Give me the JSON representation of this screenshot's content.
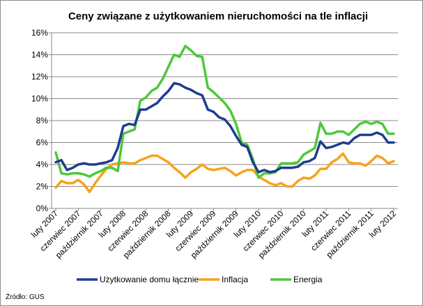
{
  "chart_data": {
    "type": "line",
    "title": "Ceny związane z użytkowaniem nieruchomości na tle inflacji",
    "source_note": "Źródło: GUS",
    "xlabel": "",
    "ylabel": "",
    "ylim": [
      0,
      16
    ],
    "y_ticks": [
      "0%",
      "2%",
      "4%",
      "6%",
      "8%",
      "10%",
      "12%",
      "14%",
      "16%"
    ],
    "x_tick_labels": [
      "luty 2007",
      "czerwiec 2007",
      "październik 2007",
      "luty 2008",
      "czerwiec 2008",
      "październik 2008",
      "luty 2009",
      "czerwiec 2009",
      "październik 2009",
      "luty 2010",
      "czerwiec 2010",
      "październik 2010",
      "luty 2011",
      "czerwiec 2011",
      "październik 2011",
      "luty 2012"
    ],
    "grid": "horizontal",
    "legend_position": "bottom",
    "series": [
      {
        "name": "Użytkowanie domu łącznie",
        "color": "#1f3c8f",
        "values": [
          4.2,
          4.4,
          3.5,
          3.7,
          4.0,
          4.1,
          4.0,
          4.0,
          4.1,
          4.2,
          4.4,
          5.5,
          7.5,
          7.7,
          7.6,
          9.0,
          9.0,
          9.3,
          9.6,
          10.2,
          10.7,
          11.4,
          11.3,
          11.0,
          10.8,
          10.5,
          10.3,
          9.0,
          8.8,
          8.3,
          8.1,
          7.5,
          6.6,
          5.8,
          5.6,
          4.2,
          3.3,
          3.5,
          3.3,
          3.4,
          3.7,
          3.7,
          3.7,
          3.8,
          4.2,
          4.3,
          4.6,
          6.1,
          5.5,
          5.6,
          5.8,
          6.0,
          5.9,
          6.4,
          6.7,
          6.7,
          6.7,
          6.9,
          6.7,
          6.0,
          6.0
        ]
      },
      {
        "name": "Inflacja",
        "color": "#f7a21b",
        "values": [
          1.9,
          2.5,
          2.3,
          2.3,
          2.6,
          2.2,
          1.5,
          2.3,
          3.0,
          3.6,
          4.0,
          4.1,
          4.2,
          4.1,
          4.1,
          4.4,
          4.6,
          4.8,
          4.8,
          4.5,
          4.2,
          3.7,
          3.3,
          2.8,
          3.3,
          3.6,
          4.0,
          3.6,
          3.5,
          3.6,
          3.7,
          3.4,
          3.0,
          3.3,
          3.5,
          3.5,
          2.9,
          2.6,
          2.3,
          2.1,
          2.3,
          2.0,
          2.0,
          2.5,
          2.8,
          2.7,
          3.0,
          3.6,
          3.6,
          4.2,
          4.5,
          5.0,
          4.2,
          4.1,
          4.1,
          3.9,
          4.3,
          4.8,
          4.6,
          4.1,
          4.3
        ]
      },
      {
        "name": "Energia",
        "color": "#4dc83a",
        "values": [
          5.1,
          3.2,
          3.1,
          3.2,
          3.2,
          3.1,
          2.9,
          3.2,
          3.4,
          3.7,
          3.7,
          3.4,
          6.8,
          7.0,
          7.2,
          9.8,
          10.1,
          10.7,
          11.0,
          11.8,
          12.9,
          14.0,
          13.8,
          14.8,
          14.4,
          13.9,
          13.8,
          11.0,
          10.6,
          10.1,
          9.6,
          8.9,
          7.7,
          6.0,
          5.8,
          4.5,
          2.8,
          3.2,
          3.2,
          3.3,
          4.1,
          4.1,
          4.1,
          4.2,
          4.9,
          5.2,
          5.5,
          7.8,
          6.8,
          6.8,
          7.0,
          7.0,
          6.7,
          7.2,
          7.7,
          7.9,
          7.7,
          7.9,
          7.7,
          6.8,
          6.8
        ]
      }
    ]
  }
}
